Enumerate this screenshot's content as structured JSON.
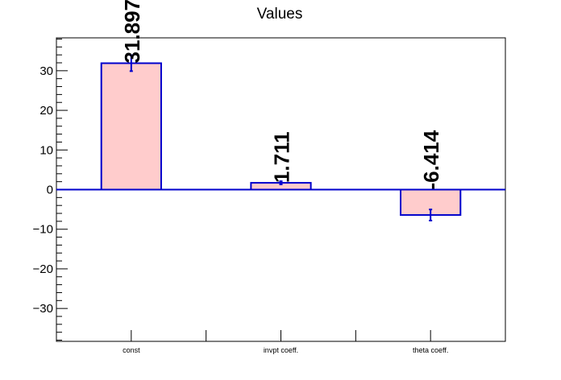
{
  "chart_data": {
    "type": "bar",
    "title": "Values",
    "categories": [
      "const",
      "invpt coeff.",
      "theta coeff."
    ],
    "values": [
      31.897,
      1.711,
      -6.414
    ],
    "value_labels": [
      "31.897",
      "1.711",
      "-6.414"
    ],
    "errors": [
      2.0,
      0.4,
      1.4
    ],
    "ylim": [
      -38.3,
      38.3
    ],
    "yticks": [
      -30,
      -20,
      -10,
      0,
      10,
      20,
      30
    ],
    "ytick_labels": [
      "−30",
      "−20",
      "−10",
      "0",
      "10",
      "20",
      "30"
    ],
    "xlabel": "",
    "ylabel": "",
    "grid": false,
    "legend": "none",
    "colors": {
      "bar_fill": "#ffcccc",
      "bar_edge": "#0000cc",
      "axis": "#000000"
    }
  }
}
